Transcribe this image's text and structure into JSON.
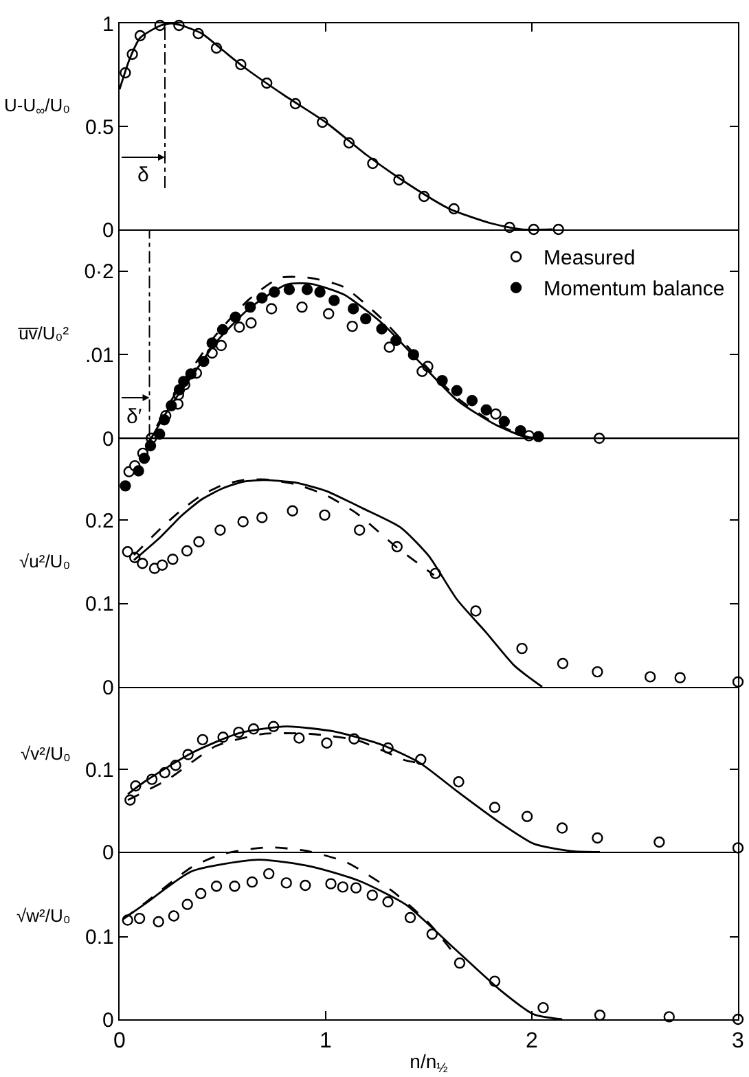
{
  "chart_data": [
    {
      "type": "scatter",
      "ylabel": "U-U$_{∞}$/U₀",
      "xlim": [
        0,
        3
      ],
      "xticks": [
        {
          "value": 1,
          "label": null
        },
        {
          "value": 2,
          "label": null
        }
      ],
      "ylim": [
        0,
        1
      ],
      "yticks": [
        0,
        0.5,
        1
      ],
      "tick_labels": "y",
      "grid": false,
      "ref_lines": [
        {
          "axis": "x",
          "value": 0.22,
          "label": "δ"
        }
      ],
      "series": [
        {
          "marker": "circle",
          "color": "#ffffff",
          "x": [
            0.028,
            0.062,
            0.1,
            0.196,
            0.288,
            0.382,
            0.47,
            0.588,
            0.714,
            0.853,
            0.984,
            1.113,
            1.228,
            1.355,
            1.477,
            1.622,
            1.892,
            2.009,
            2.129
          ],
          "values": [
            0.76,
            0.85,
            0.94,
            0.99,
            0.99,
            0.95,
            0.88,
            0.8,
            0.71,
            0.61,
            0.52,
            0.42,
            0.32,
            0.24,
            0.16,
            0.1,
            0.01,
            0,
            0
          ]
        },
        {
          "type": "line",
          "line_style": "solid",
          "color": "#000000",
          "x": [
            0,
            0.05,
            0.1,
            0.2,
            0.25,
            0.3,
            0.4,
            0.5,
            0.6,
            0.8,
            1.0,
            1.2,
            1.4,
            1.6,
            1.8,
            1.95,
            2.1
          ],
          "values": [
            0.68,
            0.83,
            0.93,
            0.99,
            1.0,
            0.99,
            0.95,
            0.87,
            0.79,
            0.65,
            0.52,
            0.36,
            0.22,
            0.1,
            0.03,
            0.0,
            0.0
          ]
        }
      ]
    },
    {
      "type": "scatter",
      "ylabel": "u̅v̅/U₀²",
      "xlim": [
        0,
        3
      ],
      "ylim": [
        -0.006,
        0.025
      ],
      "yticks": [
        0,
        {
          "value": 0.01,
          "label": ".01"
        },
        {
          "value": 0.02,
          "label": "0·2"
        }
      ],
      "tick_labels": "y",
      "grid": false,
      "legend": "top right",
      "ref_lines": [
        {
          "axis": "x",
          "value": 0.145,
          "label": "δ′"
        },
        {
          "axis": "y",
          "value": 0,
          "line_style": "solid"
        }
      ],
      "series": [
        {
          "name": "Measured",
          "marker": "circle",
          "color": "#ffffff",
          "x": [
            0.046,
            0.074,
            0.113,
            0.154,
            0.224,
            0.283,
            0.286,
            0.316,
            0.373,
            0.449,
            0.493,
            0.581,
            0.638,
            0.737,
            0.885,
            1.014,
            1.129,
            1.309,
            1.468,
            1.495,
            1.825,
            1.986,
            2.327
          ],
          "values": [
            -0.004,
            -0.0033,
            -0.0018,
            0,
            0.0027,
            0.0041,
            0.0052,
            0.0064,
            0.0078,
            0.0102,
            0.0111,
            0.0133,
            0.0138,
            0.0155,
            0.0157,
            0.0149,
            0.0134,
            0.0109,
            0.008,
            0.0086,
            0.0029,
            0.0003,
            0
          ]
        },
        {
          "name": "Momentum balance",
          "marker": "circle",
          "color": "#000000",
          "x": [
            0.028,
            0.092,
            0.12,
            0.15,
            0.194,
            0.217,
            0.251,
            0.29,
            0.311,
            0.346,
            0.408,
            0.449,
            0.5,
            0.562,
            0.634,
            0.691,
            0.751,
            0.823,
            0.91,
            0.972,
            1.041,
            1.134,
            1.194,
            1.272,
            1.341,
            1.426,
            1.565,
            1.636,
            1.71,
            1.779,
            1.866,
            1.945,
            2.032
          ],
          "values": [
            -0.0057,
            -0.0039,
            -0.0024,
            -0.0009,
            0.0005,
            0.0022,
            0.0039,
            0.0058,
            0.0068,
            0.0077,
            0.0092,
            0.0114,
            0.013,
            0.0145,
            0.0157,
            0.0168,
            0.0175,
            0.0178,
            0.0178,
            0.0175,
            0.0165,
            0.0155,
            0.0143,
            0.0131,
            0.0117,
            0.01,
            0.0069,
            0.0057,
            0.0045,
            0.0034,
            0.002,
            0.0009,
            0.0002
          ]
        },
        {
          "type": "line",
          "line_style": "solid",
          "color": "#000000",
          "x": [
            0.13,
            0.154,
            0.25,
            0.35,
            0.465,
            0.627,
            0.81,
            0.926,
            1.088,
            1.272,
            1.456,
            1.64,
            1.825,
            1.963,
            2.05
          ],
          "values": [
            -0.0012,
            0,
            0.004,
            0.0074,
            0.0114,
            0.0155,
            0.0184,
            0.0185,
            0.0172,
            0.0138,
            0.0091,
            0.0045,
            0.0016,
            0.0002,
            0
          ]
        },
        {
          "type": "line",
          "line_style": "dashed",
          "color": "#000000",
          "x": [
            0.13,
            0.154,
            0.25,
            0.35,
            0.465,
            0.627,
            0.777,
            0.926,
            1.088,
            1.272,
            1.456,
            1.64,
            1.825,
            1.986
          ],
          "values": [
            -0.0012,
            0.0002,
            0.0045,
            0.0083,
            0.0123,
            0.0166,
            0.0192,
            0.0192,
            0.0181,
            0.0143,
            0.0094,
            0.0048,
            0.0017,
            0.0001
          ]
        }
      ]
    },
    {
      "type": "scatter",
      "ylabel": "√u²/U₀",
      "xlim": [
        0,
        3
      ],
      "ylim": [
        0,
        0.25
      ],
      "yticks": [
        0,
        0.1,
        0.2
      ],
      "tick_labels": "y",
      "grid": false,
      "series": [
        {
          "marker": "circle",
          "color": "#ffffff",
          "x": [
            0.039,
            0.074,
            0.111,
            0.17,
            0.207,
            0.258,
            0.327,
            0.385,
            0.488,
            0.599,
            0.691,
            0.839,
            0.995,
            1.164,
            1.346,
            1.532,
            1.728,
            1.952,
            2.15,
            2.318,
            2.574,
            2.719,
            3.0
          ],
          "values": [
            0.162,
            0.155,
            0.148,
            0.142,
            0.146,
            0.153,
            0.163,
            0.174,
            0.188,
            0.198,
            0.203,
            0.211,
            0.206,
            0.188,
            0.168,
            0.136,
            0.091,
            0.046,
            0.028,
            0.018,
            0.012,
            0.011,
            0.006
          ]
        },
        {
          "type": "line",
          "line_style": "solid",
          "color": "#000000",
          "x": [
            0.07,
            0.2,
            0.3,
            0.4,
            0.5,
            0.6,
            0.7,
            0.85,
            1.0,
            1.18,
            1.364,
            1.5,
            1.636,
            1.779,
            1.917,
            2.05
          ],
          "values": [
            0.152,
            0.18,
            0.205,
            0.225,
            0.238,
            0.246,
            0.248,
            0.245,
            0.235,
            0.214,
            0.191,
            0.157,
            0.105,
            0.065,
            0.025,
            0
          ]
        },
        {
          "type": "line",
          "line_style": "dashed",
          "color": "#000000",
          "x": [
            0.07,
            0.2,
            0.3,
            0.4,
            0.5,
            0.6,
            0.7,
            0.85,
            1.0,
            1.15,
            1.341,
            1.525
          ],
          "values": [
            0.158,
            0.19,
            0.212,
            0.23,
            0.242,
            0.248,
            0.249,
            0.243,
            0.23,
            0.208,
            0.168,
            0.134
          ]
        }
      ]
    },
    {
      "type": "scatter",
      "ylabel": "√v²/U₀",
      "xlim": [
        0,
        3
      ],
      "ylim": [
        0,
        0.2
      ],
      "yticks": [
        0,
        0.1
      ],
      "tick_labels": "y",
      "grid": false,
      "series": [
        {
          "marker": "circle",
          "color": "#ffffff",
          "x": [
            0.051,
            0.078,
            0.157,
            0.219,
            0.272,
            0.332,
            0.403,
            0.502,
            0.578,
            0.65,
            0.747,
            0.871,
            1.005,
            1.138,
            1.302,
            1.461,
            1.645,
            1.82,
            1.977,
            2.147,
            2.318,
            2.618,
            3.0
          ],
          "values": [
            0.063,
            0.08,
            0.088,
            0.096,
            0.105,
            0.118,
            0.136,
            0.139,
            0.145,
            0.149,
            0.152,
            0.138,
            0.132,
            0.137,
            0.126,
            0.112,
            0.085,
            0.054,
            0.043,
            0.029,
            0.017,
            0.012,
            0.005
          ]
        },
        {
          "type": "line",
          "line_style": "solid",
          "color": "#000000",
          "x": [
            0.04,
            0.12,
            0.35,
            0.58,
            0.81,
            1.04,
            1.27,
            1.456,
            1.64,
            1.825,
            2.009,
            2.19,
            2.33
          ],
          "values": [
            0.07,
            0.085,
            0.12,
            0.144,
            0.152,
            0.146,
            0.13,
            0.108,
            0.073,
            0.039,
            0.01,
            0.001,
            0
          ]
        },
        {
          "type": "line",
          "line_style": "dashed",
          "color": "#000000",
          "x": [
            0.04,
            0.235,
            0.465,
            0.696,
            0.926,
            1.157,
            1.387,
            1.45
          ],
          "values": [
            0.063,
            0.088,
            0.128,
            0.143,
            0.143,
            0.135,
            0.111,
            0.108
          ]
        }
      ]
    },
    {
      "type": "scatter",
      "ylabel": "√w²/U₀",
      "xlabel": "n/n$_{½}$",
      "xlim": [
        0,
        3
      ],
      "xticks": [
        0,
        1,
        2,
        3
      ],
      "ylim": [
        0,
        0.21
      ],
      "yticks": [
        0,
        0.1
      ],
      "grid": false,
      "series": [
        {
          "marker": "circle",
          "color": "#ffffff",
          "x": [
            0.039,
            0.097,
            0.189,
            0.263,
            0.329,
            0.394,
            0.47,
            0.558,
            0.643,
            0.724,
            0.809,
            0.901,
            1.025,
            1.083,
            1.147,
            1.226,
            1.302,
            1.41,
            1.516,
            1.65,
            1.82,
            2.055,
            2.33,
            2.666,
            3.0
          ],
          "values": [
            0.12,
            0.122,
            0.118,
            0.125,
            0.139,
            0.152,
            0.161,
            0.161,
            0.166,
            0.176,
            0.165,
            0.162,
            0.164,
            0.16,
            0.159,
            0.15,
            0.142,
            0.123,
            0.103,
            0.068,
            0.046,
            0.014,
            0.005,
            0.003,
            0
          ]
        },
        {
          "type": "line",
          "line_style": "solid",
          "color": "#000000",
          "x": [
            0.016,
            0.12,
            0.35,
            0.673,
            0.926,
            1.157,
            1.387,
            1.618,
            1.848,
            2.009,
            2.147
          ],
          "values": [
            0.121,
            0.139,
            0.179,
            0.193,
            0.185,
            0.168,
            0.139,
            0.087,
            0.035,
            0.006,
            0
          ]
        },
        {
          "type": "line",
          "line_style": "dashed",
          "color": "#000000",
          "x": [
            0.016,
            0.12,
            0.35,
            0.5,
            0.72,
            0.9,
            1.1,
            1.318,
            1.502,
            1.618
          ],
          "values": [
            0.121,
            0.14,
            0.184,
            0.2,
            0.208,
            0.204,
            0.19,
            0.156,
            0.116,
            0.081
          ]
        }
      ]
    }
  ]
}
